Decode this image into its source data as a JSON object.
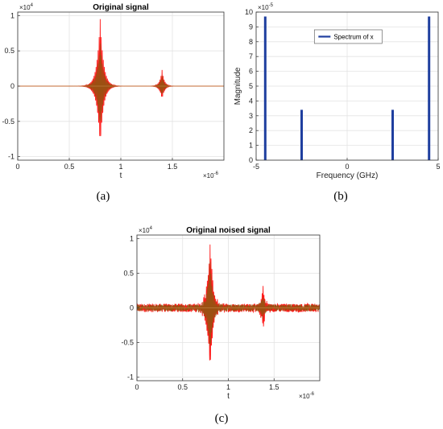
{
  "chart_data": [
    {
      "type": "line",
      "title": "Original signal",
      "xlabel": "t",
      "ylabel": "",
      "x_exponent_label": "×10",
      "x_exponent": "-6",
      "y_exponent_label": "×10",
      "y_exponent": "4",
      "xlim": [
        0,
        2e-06
      ],
      "ylim": [
        -10500,
        10500
      ],
      "x_ticks": [
        0,
        5e-07,
        1e-06,
        1.5e-06
      ],
      "x_tick_labels": [
        "0",
        "0.5",
        "1",
        "1.5"
      ],
      "y_ticks": [
        -10000,
        -5000,
        0,
        5000,
        10000
      ],
      "y_tick_labels": [
        "-1",
        "-0.5",
        "0",
        "0.5",
        "1"
      ],
      "grid": true,
      "noise_amplitude": 0,
      "series": [
        {
          "color": "#ff0000",
          "bursts": [
            {
              "center": 8e-07,
              "peak": 9500,
              "trough": -9000
            },
            {
              "center": 1.4e-06,
              "peak": 2300,
              "trough": -2000
            }
          ]
        },
        {
          "color": "#8a5a12",
          "bursts": [
            {
              "center": 8e-07,
              "peak": 6000,
              "trough": -6200
            },
            {
              "center": 1.4e-06,
              "peak": 1500,
              "trough": -1400
            }
          ]
        }
      ],
      "caption": "(a)"
    },
    {
      "type": "bar",
      "title": "",
      "xlabel": "Frequency (GHz)",
      "ylabel": "Magnitude",
      "y_exponent_label": "×10",
      "y_exponent": "-5",
      "xlim": [
        -5,
        5
      ],
      "ylim": [
        0,
        0.0001
      ],
      "x_ticks": [
        -5,
        0,
        5
      ],
      "x_tick_labels": [
        "-5",
        "0",
        "5"
      ],
      "y_ticks": [
        0,
        1e-05,
        2e-05,
        3e-05,
        4e-05,
        5e-05,
        6e-05,
        7e-05,
        8e-05,
        9e-05,
        0.0001
      ],
      "y_tick_labels": [
        "0",
        "1",
        "2",
        "3",
        "4",
        "5",
        "6",
        "7",
        "8",
        "9",
        "10"
      ],
      "grid": true,
      "legend": {
        "label": "Spectrum of x",
        "placement": "top-center",
        "color": "#1f3f9f"
      },
      "series": [
        {
          "name": "Spectrum of x",
          "color": "#1f3f9f",
          "x": [
            -4.5,
            -2.5,
            2.5,
            4.5
          ],
          "values": [
            9.7e-05,
            3.4e-05,
            3.4e-05,
            9.7e-05
          ]
        }
      ],
      "caption": "(b)"
    },
    {
      "type": "line",
      "title": "Original noised signal",
      "xlabel": "t",
      "ylabel": "",
      "x_exponent_label": "×10",
      "x_exponent": "-6",
      "y_exponent_label": "×10",
      "y_exponent": "4",
      "xlim": [
        0,
        2e-06
      ],
      "ylim": [
        -10500,
        10500
      ],
      "x_ticks": [
        0,
        5e-07,
        1e-06,
        1.5e-06
      ],
      "x_tick_labels": [
        "0",
        "0.5",
        "1",
        "1.5"
      ],
      "y_ticks": [
        -10000,
        -5000,
        0,
        5000,
        10000
      ],
      "y_tick_labels": [
        "-1",
        "-0.5",
        "0",
        "0.5",
        "1"
      ],
      "grid": true,
      "noise_amplitude": 600,
      "series": [
        {
          "color": "#ff0000",
          "bursts": [
            {
              "center": 8e-07,
              "peak": 9500,
              "trough": -9300
            },
            {
              "center": 1.38e-06,
              "peak": 3000,
              "trough": -2900
            }
          ]
        },
        {
          "color": "#8a5a12",
          "bursts": [
            {
              "center": 8e-07,
              "peak": 6200,
              "trough": -6400
            },
            {
              "center": 1.38e-06,
              "peak": 1700,
              "trough": -1600
            }
          ]
        }
      ],
      "caption": "(c)"
    }
  ]
}
